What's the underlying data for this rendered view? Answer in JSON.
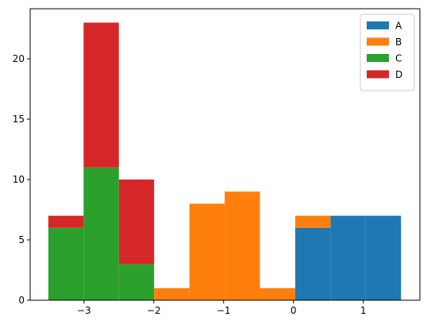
{
  "chart_data": {
    "type": "bar",
    "stacked": true,
    "xlim": [
      -3.77,
      1.81
    ],
    "ylim": [
      0,
      24.15
    ],
    "x_ticks": [
      -3,
      -2,
      -1,
      0,
      1
    ],
    "x_tick_labels": [
      "−3",
      "−2",
      "−1",
      "0",
      "1"
    ],
    "y_ticks": [
      0,
      5,
      10,
      15,
      20
    ],
    "y_tick_labels": [
      "0",
      "5",
      "10",
      "15",
      "20"
    ],
    "bin_edges": [
      -3.51,
      -3.005,
      -2.5,
      -1.995,
      -1.49,
      -0.985,
      -0.48,
      0.025,
      0.53,
      1.035,
      1.54
    ],
    "series": [
      {
        "name": "A",
        "color": "#1f77b4",
        "values": [
          0,
          0,
          0,
          0,
          0,
          0,
          0,
          6,
          7,
          7
        ]
      },
      {
        "name": "B",
        "color": "#ff7f0e",
        "values": [
          0,
          0,
          0,
          1,
          8,
          9,
          1,
          1,
          0,
          0
        ]
      },
      {
        "name": "C",
        "color": "#2ca02c",
        "values": [
          6,
          11,
          3,
          0,
          0,
          0,
          0,
          0,
          0,
          0
        ]
      },
      {
        "name": "D",
        "color": "#d62728",
        "values": [
          1,
          12,
          7,
          0,
          0,
          0,
          0,
          0,
          0,
          0
        ]
      }
    ],
    "legend_position": "top-right"
  }
}
